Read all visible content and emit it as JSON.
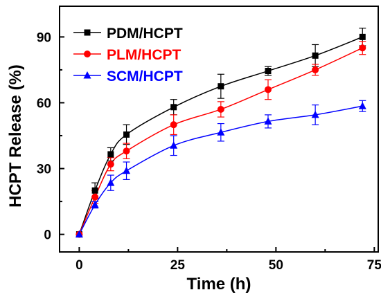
{
  "chart_data": {
    "type": "line",
    "xlabel": "Time (h)",
    "ylabel": "HCPT Release (%)",
    "xlim": [
      -5,
      76
    ],
    "ylim": [
      -8,
      104
    ],
    "xticks": [
      0,
      25,
      50,
      75
    ],
    "yticks": [
      0,
      30,
      60,
      90
    ],
    "grid": false,
    "legend_position": "top-left",
    "x": [
      0,
      4,
      8,
      12,
      24,
      36,
      48,
      60,
      72
    ],
    "series": [
      {
        "name": "PDM/HCPT",
        "color": "#000000",
        "marker": "square",
        "values": [
          0,
          20,
          36.5,
          45.5,
          58,
          67.5,
          74.5,
          81.5,
          90
        ],
        "errors": [
          0,
          3.5,
          3,
          4.5,
          3.5,
          5.5,
          2,
          5,
          4
        ]
      },
      {
        "name": "PLM/HCPT",
        "color": "#ff0000",
        "marker": "circle",
        "values": [
          0,
          17,
          32,
          38,
          50,
          57,
          66,
          75,
          85
        ],
        "errors": [
          0,
          3,
          3,
          3.5,
          4.5,
          3.5,
          4.5,
          2.5,
          3
        ]
      },
      {
        "name": "SCM/HCPT",
        "color": "#0000ff",
        "marker": "triangle",
        "values": [
          0,
          13.5,
          23.5,
          29,
          40.5,
          46.5,
          51.5,
          54.5,
          58.5
        ],
        "errors": [
          0,
          1.5,
          3.5,
          4,
          4.5,
          4,
          3,
          4.5,
          2.5
        ]
      }
    ]
  }
}
